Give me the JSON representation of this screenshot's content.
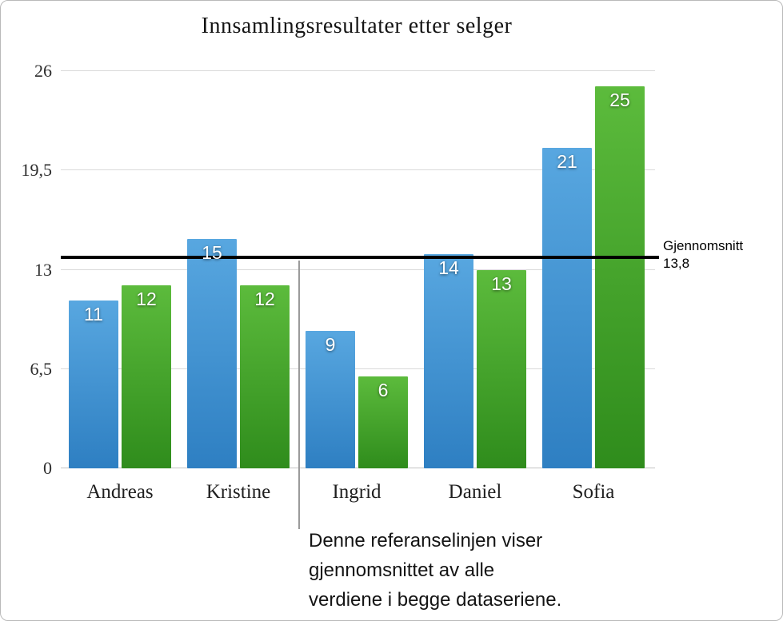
{
  "chart_data": {
    "type": "bar",
    "title": "Innsamlingsresultater etter selger",
    "categories": [
      "Andreas",
      "Kristine",
      "Ingrid",
      "Daniel",
      "Sofia"
    ],
    "series": [
      {
        "name": "blue-series",
        "color_top": "#58a7e0",
        "color_bottom": "#2e7fc2",
        "values": [
          11,
          15,
          9,
          14,
          21
        ]
      },
      {
        "name": "green-series",
        "color_top": "#5cbb3c",
        "color_bottom": "#2f8c1c",
        "values": [
          12,
          12,
          6,
          13,
          25
        ]
      }
    ],
    "y_ticks": [
      {
        "value": 26,
        "label": "26"
      },
      {
        "value": 19.5,
        "label": "19,5"
      },
      {
        "value": 13,
        "label": "13"
      },
      {
        "value": 6.5,
        "label": "6,5"
      },
      {
        "value": 0,
        "label": "0"
      }
    ],
    "ylim": [
      0,
      26
    ],
    "grid": true,
    "reference_line": {
      "value": 13.8,
      "label": "Gjennomsnitt",
      "value_label": "13,8",
      "color": "#000000"
    }
  },
  "annotation": {
    "lines": [
      "Denne referanselinjen viser",
      "gjennomsnittet av alle",
      "verdiene i begge dataseriene."
    ]
  }
}
